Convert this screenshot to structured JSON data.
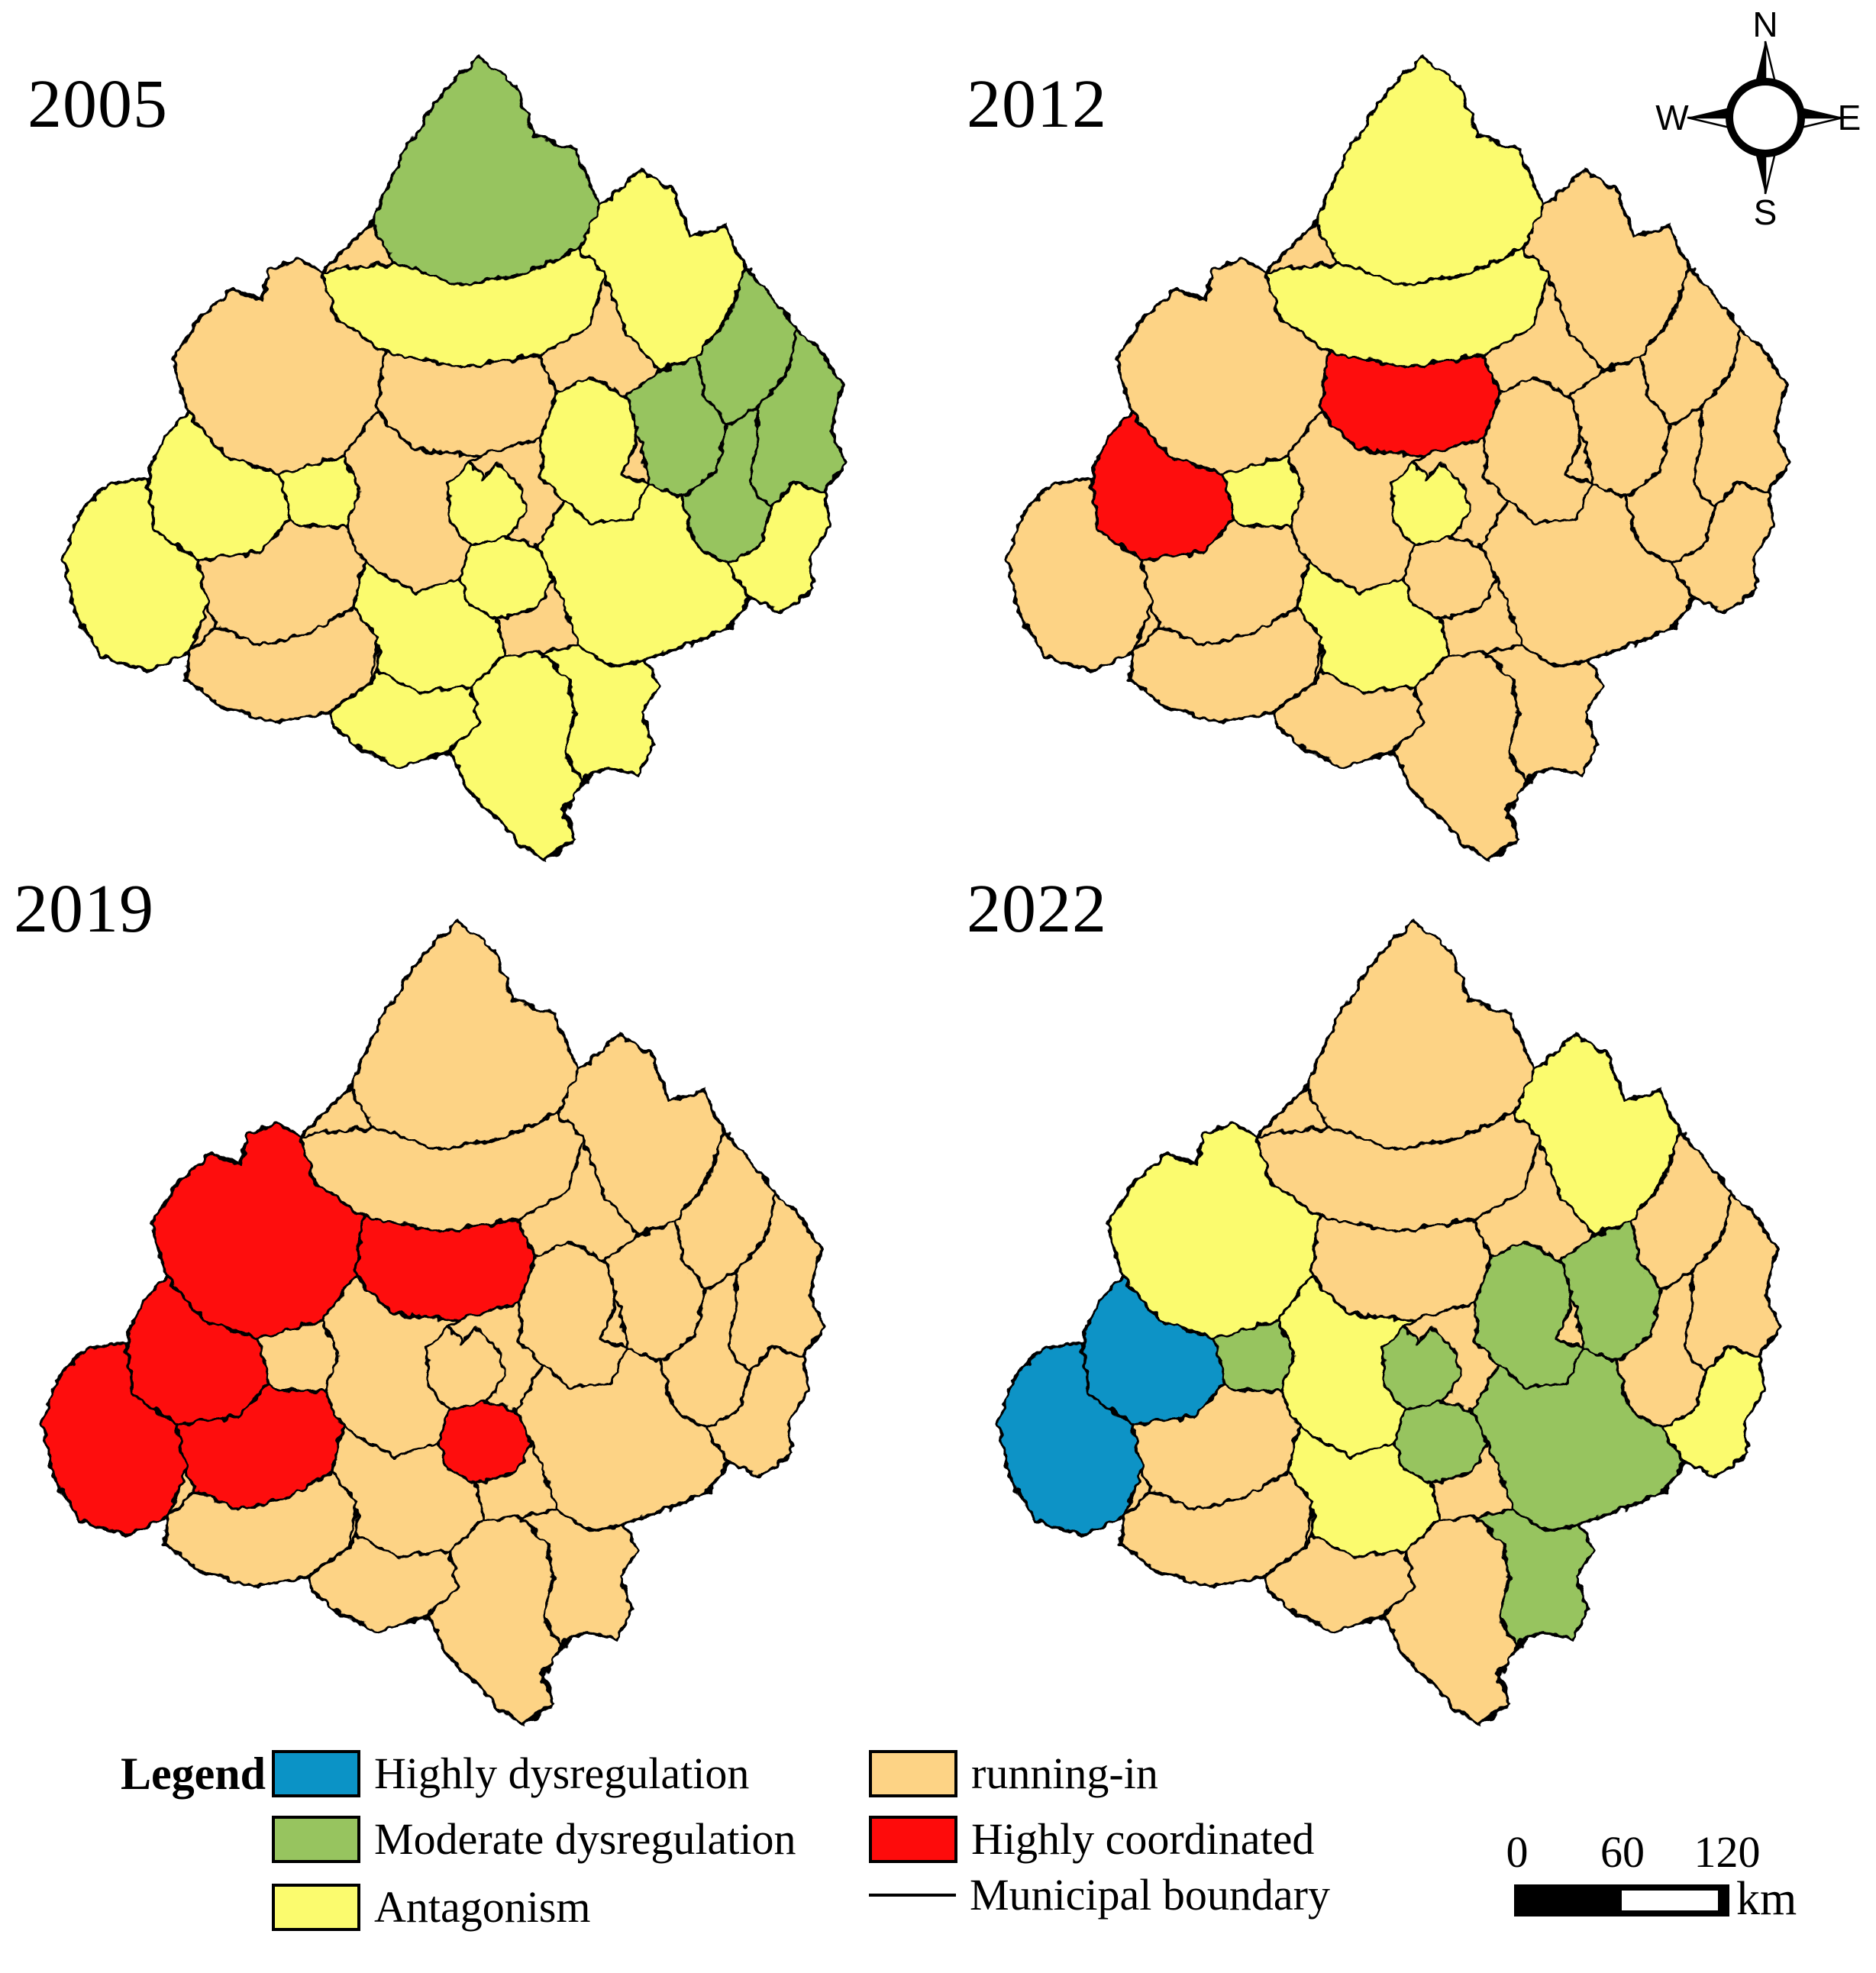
{
  "figure": {
    "background": "#ffffff"
  },
  "years": [
    {
      "label": "2005",
      "regions": {
        "A": "md",
        "B": "an",
        "C": "an",
        "D": "ri",
        "E": "an",
        "F": "ri",
        "G": "an",
        "H": "ri",
        "I": "an",
        "J": "an",
        "K": "an",
        "L": "an",
        "M": "md",
        "N": "md",
        "O": "md",
        "P": "ri",
        "Q": "an",
        "R": "md",
        "S": "an",
        "T": "an",
        "U": "an",
        "V": "an",
        "W": "ri",
        "X": "an"
      }
    },
    {
      "label": "2012",
      "regions": {
        "A": "an",
        "B": "an",
        "C": "ri",
        "D": "ri",
        "E": "hc",
        "F": "hc",
        "G": "ri",
        "H": "ri",
        "I": "ri",
        "J": "an",
        "K": "an",
        "L": "ri",
        "M": "ri",
        "N": "ri",
        "O": "ri",
        "P": "ri",
        "Q": "an",
        "R": "ri",
        "S": "ri",
        "T": "ri",
        "U": "ri",
        "V": "ri",
        "W": "ri",
        "X": "ri"
      }
    },
    {
      "label": "2019",
      "regions": {
        "A": "ri",
        "B": "ri",
        "C": "ri",
        "D": "hc",
        "E": "hc",
        "F": "hc",
        "G": "hc",
        "H": "ri",
        "I": "hc",
        "J": "ri",
        "K": "ri",
        "L": "ri",
        "M": "ri",
        "N": "ri",
        "O": "ri",
        "P": "ri",
        "Q": "ri",
        "R": "ri",
        "S": "ri",
        "T": "ri",
        "U": "ri",
        "V": "ri",
        "W": "hc",
        "X": "ri"
      }
    },
    {
      "label": "2022",
      "regions": {
        "A": "ri",
        "B": "ri",
        "C": "an",
        "D": "an",
        "E": "hd",
        "F": "ri",
        "G": "hd",
        "H": "ri",
        "I": "md",
        "J": "md",
        "K": "md",
        "L": "md",
        "M": "ri",
        "N": "md",
        "O": "ri",
        "P": "an",
        "Q": "an",
        "R": "ri",
        "S": "an",
        "T": "ri",
        "U": "ri",
        "V": "md",
        "W": "ri",
        "X": "md"
      }
    }
  ],
  "legend": {
    "title": "Legend",
    "items": [
      {
        "id": "hd",
        "label": "Highly dysregulation",
        "color": "#0b93c6",
        "type": "swatch"
      },
      {
        "id": "md",
        "label": "Moderate dysregulation",
        "color": "#97c45f",
        "type": "swatch"
      },
      {
        "id": "an",
        "label": "Antagonism",
        "color": "#fbfb6e",
        "type": "swatch"
      },
      {
        "id": "ri",
        "label": "running-in",
        "color": "#fdd385",
        "type": "swatch"
      },
      {
        "id": "hc",
        "label": "Highly coordinated",
        "color": "#fe0b0b",
        "type": "swatch"
      },
      {
        "id": "boundary",
        "label": "Municipal boundary",
        "color": "#000000",
        "type": "line"
      }
    ]
  },
  "compass": {
    "north": "N",
    "south": "S",
    "east": "E",
    "west": "W"
  },
  "scale_bar": {
    "ticks": [
      "0",
      "60",
      "120"
    ],
    "unit": "km"
  },
  "map_meta": {
    "boundary_color": "#000000",
    "region_count": 24,
    "region_order": [
      "A",
      "B",
      "C",
      "D",
      "E",
      "F",
      "G",
      "H",
      "I",
      "J",
      "K",
      "L",
      "M",
      "N",
      "O",
      "P",
      "Q",
      "R",
      "S",
      "T",
      "U",
      "V",
      "W",
      "X"
    ]
  }
}
